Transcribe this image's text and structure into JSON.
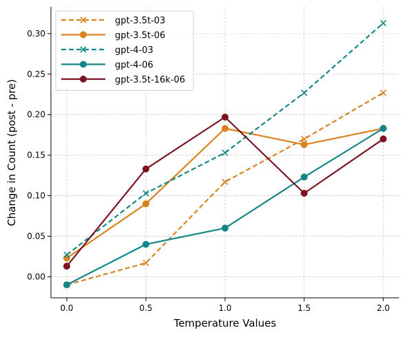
{
  "chart_data": {
    "type": "line",
    "title": "",
    "xlabel": "Temperature Values",
    "ylabel": "Change in Count (post - pre)",
    "x": [
      0.0,
      0.5,
      1.0,
      1.5,
      2.0
    ],
    "xticks": [
      0.0,
      0.5,
      1.0,
      1.5,
      2.0
    ],
    "xtick_labels": [
      "0.0",
      "0.5",
      "1.0",
      "1.5",
      "2.0"
    ],
    "yticks": [
      0.0,
      0.05,
      0.1,
      0.15,
      0.2,
      0.25,
      0.3
    ],
    "ytick_labels": [
      "0.00",
      "0.05",
      "0.10",
      "0.15",
      "0.20",
      "0.25",
      "0.30"
    ],
    "xlim": [
      -0.1,
      2.1
    ],
    "ylim": [
      -0.026,
      0.333
    ],
    "grid": true,
    "legend_position": "top-left",
    "series": [
      {
        "name": "gpt-3.5t-03",
        "color": "#D9821E",
        "dashed": true,
        "marker": "x",
        "values": [
          -0.01,
          0.017,
          0.117,
          0.17,
          0.227
        ]
      },
      {
        "name": "gpt-3.5t-06",
        "color": "#D9821E",
        "dashed": false,
        "marker": "o",
        "values": [
          0.023,
          0.09,
          0.183,
          0.163,
          0.183
        ]
      },
      {
        "name": "gpt-4-03",
        "color": "#138787",
        "dashed": true,
        "marker": "x",
        "values": [
          0.027,
          0.103,
          0.153,
          0.227,
          0.313
        ]
      },
      {
        "name": "gpt-4-06",
        "color": "#138787",
        "dashed": false,
        "marker": "o",
        "values": [
          -0.01,
          0.04,
          0.06,
          0.123,
          0.183
        ]
      },
      {
        "name": "gpt-3.5t-16k-06",
        "color": "#7B1420",
        "dashed": false,
        "marker": "o",
        "values": [
          0.013,
          0.133,
          0.197,
          0.103,
          0.17
        ]
      }
    ]
  }
}
